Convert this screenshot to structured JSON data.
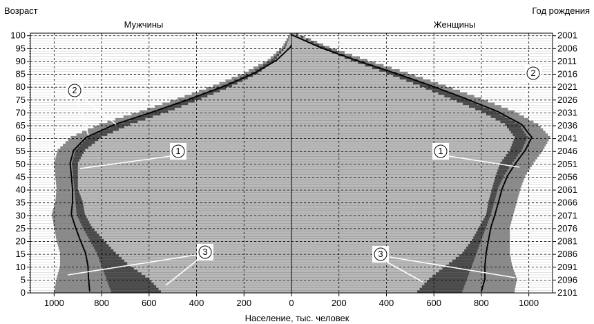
{
  "chart_data": {
    "type": "population-pyramid",
    "left_axis_title": "Возраст",
    "right_axis_title": "Год рождения",
    "xlabel": "Население, тыс. человек",
    "left_group_label": "Мужчины",
    "right_group_label": "Женщины",
    "x_ticks": [
      "1000",
      "800",
      "600",
      "400",
      "200",
      "0",
      "200",
      "400",
      "600",
      "800",
      "1000"
    ],
    "x_tick_values": [
      -1000,
      -800,
      -600,
      -400,
      -200,
      0,
      200,
      400,
      600,
      800,
      1000
    ],
    "xlim": [
      -1100,
      1100
    ],
    "age_ticks": [
      "0",
      "5",
      "10",
      "15",
      "20",
      "25",
      "30",
      "35",
      "40",
      "45",
      "50",
      "55",
      "60",
      "65",
      "70",
      "75",
      "80",
      "85",
      "90",
      "95",
      "100"
    ],
    "year_ticks": [
      "2101",
      "2096",
      "2091",
      "2086",
      "2081",
      "2076",
      "2071",
      "2066",
      "2061",
      "2056",
      "2051",
      "2046",
      "2041",
      "2036",
      "2031",
      "2026",
      "2021",
      "2016",
      "2011",
      "2006",
      "2001"
    ],
    "ylim": [
      0,
      101
    ],
    "grid": "dashed",
    "series": [
      {
        "side": "male",
        "ages": [
          0,
          5,
          10,
          15,
          20,
          25,
          30,
          35,
          40,
          45,
          50,
          55,
          60,
          65,
          70,
          75,
          80,
          85,
          90,
          95,
          100
        ],
        "inner": [
          550,
          600,
          680,
          740,
          790,
          840,
          870,
          880,
          900,
          900,
          900,
          870,
          800,
          680,
          520,
          380,
          250,
          140,
          70,
          25,
          5
        ],
        "mid": [
          760,
          780,
          800,
          820,
          850,
          880,
          905,
          910,
          915,
          920,
          925,
          910,
          860,
          740,
          580,
          430,
          290,
          170,
          85,
          30,
          6
        ],
        "outer": [
          1000,
          990,
          975,
          975,
          990,
          1000,
          1010,
          995,
          990,
          995,
          1000,
          985,
          930,
          810,
          640,
          480,
          330,
          200,
          100,
          40,
          8
        ]
      },
      {
        "side": "female",
        "ages": [
          0,
          5,
          10,
          15,
          20,
          25,
          30,
          35,
          40,
          45,
          50,
          55,
          60,
          65,
          70,
          75,
          80,
          85,
          90,
          95,
          100
        ],
        "inner": [
          530,
          580,
          650,
          720,
          760,
          790,
          820,
          830,
          845,
          860,
          880,
          920,
          940,
          900,
          800,
          670,
          540,
          400,
          250,
          120,
          20
        ],
        "mid": [
          720,
          740,
          760,
          780,
          800,
          820,
          840,
          855,
          870,
          895,
          930,
          970,
          995,
          960,
          860,
          730,
          590,
          440,
          280,
          140,
          25
        ],
        "outer": [
          940,
          950,
          930,
          920,
          920,
          920,
          935,
          950,
          965,
          985,
          1020,
          1060,
          1090,
          1040,
          940,
          800,
          650,
          490,
          320,
          160,
          30
        ]
      }
    ],
    "callouts": [
      "1",
      "1",
      "2",
      "2",
      "3",
      "3"
    ]
  }
}
